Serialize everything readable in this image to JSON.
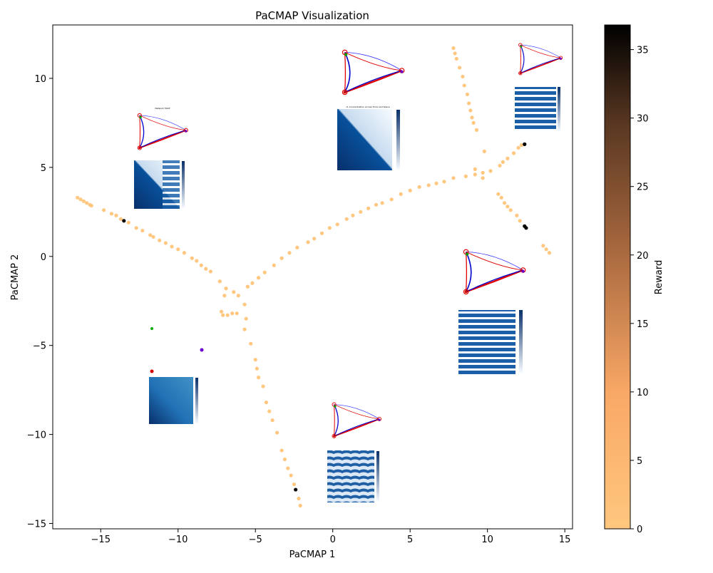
{
  "chart_data": {
    "type": "scatter",
    "title": "PaCMAP Visualization",
    "xlabel": "PaCMAP 1",
    "ylabel": "PaCMAP 2",
    "xlim": [
      -18.1,
      15.5
    ],
    "ylim": [
      -15.3,
      13.0
    ],
    "xticks": [
      -15,
      -10,
      -5,
      0,
      5,
      10,
      15
    ],
    "yticks": [
      -15,
      -10,
      -5,
      0,
      5,
      10
    ],
    "grid": false,
    "colorbar": {
      "label": "Reward",
      "min": 0,
      "max": 36.8,
      "ticks": [
        0,
        5,
        10,
        15,
        20,
        25,
        30,
        35
      ],
      "colormap": "copper_r",
      "color_low": "#ffc77f",
      "color_high": "#000000"
    },
    "series": [
      {
        "points": [
          [
            -16.5,
            3.3,
            0
          ],
          [
            -16.3,
            3.2,
            0
          ],
          [
            -16.1,
            3.1,
            0
          ],
          [
            -15.9,
            3.0,
            0
          ],
          [
            -15.7,
            2.9,
            0
          ],
          [
            -15.6,
            2.85,
            0
          ],
          [
            -14.8,
            2.6,
            0
          ],
          [
            -14.3,
            2.4,
            0
          ],
          [
            -14.0,
            2.3,
            0
          ],
          [
            -13.7,
            2.1,
            0
          ],
          [
            -13.5,
            2.0,
            36.5
          ],
          [
            -13.2,
            1.9,
            0
          ],
          [
            -12.7,
            1.6,
            0
          ],
          [
            -12.3,
            1.45,
            0
          ],
          [
            -11.8,
            1.2,
            0
          ],
          [
            -11.6,
            1.1,
            0
          ],
          [
            -11.2,
            0.9,
            0
          ],
          [
            -10.8,
            0.75,
            0
          ],
          [
            -10.4,
            0.55,
            0
          ],
          [
            -10.0,
            0.4,
            0
          ],
          [
            -9.6,
            0.2,
            0
          ],
          [
            -9.1,
            -0.1,
            0
          ],
          [
            -8.8,
            -0.25,
            0
          ],
          [
            -8.5,
            -0.5,
            0
          ],
          [
            -8.2,
            -0.7,
            0
          ],
          [
            -7.9,
            -0.85,
            0
          ],
          [
            -7.3,
            -1.4,
            0
          ],
          [
            -6.9,
            -1.8,
            0
          ],
          [
            -7.0,
            -2.2,
            0
          ],
          [
            -6.4,
            -2.0,
            0
          ],
          [
            -6.1,
            -2.2,
            0
          ],
          [
            -5.5,
            -1.7,
            0
          ],
          [
            -5.2,
            -1.5,
            0
          ],
          [
            -4.8,
            -1.2,
            0
          ],
          [
            -4.4,
            -0.9,
            0
          ],
          [
            -3.8,
            -0.5,
            0
          ],
          [
            -3.3,
            -0.1,
            0
          ],
          [
            -2.8,
            0.2,
            0
          ],
          [
            -2.3,
            0.5,
            0
          ],
          [
            -1.6,
            0.8,
            0
          ],
          [
            -1.2,
            1.0,
            0
          ],
          [
            -0.7,
            1.3,
            0
          ],
          [
            -0.2,
            1.6,
            0
          ],
          [
            0.3,
            1.8,
            0
          ],
          [
            0.9,
            2.1,
            0
          ],
          [
            1.3,
            2.3,
            0
          ],
          [
            1.8,
            2.5,
            0
          ],
          [
            2.3,
            2.7,
            0
          ],
          [
            2.8,
            2.9,
            0
          ],
          [
            3.2,
            3.0,
            0
          ],
          [
            3.8,
            3.2,
            0
          ],
          [
            4.4,
            3.5,
            0
          ],
          [
            5.0,
            3.7,
            0
          ],
          [
            5.6,
            3.9,
            0
          ],
          [
            6.2,
            4.0,
            0
          ],
          [
            6.7,
            4.1,
            0
          ],
          [
            7.2,
            4.2,
            0
          ],
          [
            7.8,
            4.4,
            0
          ],
          [
            8.6,
            4.5,
            0
          ],
          [
            9.2,
            4.6,
            0
          ],
          [
            9.7,
            4.7,
            0
          ],
          [
            10.2,
            4.8,
            0
          ],
          [
            10.8,
            5.1,
            0
          ],
          [
            11.3,
            5.5,
            0
          ],
          [
            11.7,
            5.8,
            0
          ],
          [
            12.0,
            6.1,
            0
          ],
          [
            12.2,
            6.25,
            0
          ],
          [
            12.4,
            6.3,
            36.5
          ],
          [
            9.8,
            5.9,
            0
          ],
          [
            11.0,
            5.3,
            0
          ],
          [
            9.7,
            4.4,
            0
          ],
          [
            9.2,
            4.9,
            0
          ],
          [
            7.8,
            11.7,
            0
          ],
          [
            7.9,
            11.4,
            0
          ],
          [
            8.0,
            11.1,
            0
          ],
          [
            8.2,
            10.6,
            0
          ],
          [
            8.4,
            10.1,
            0
          ],
          [
            8.5,
            9.6,
            0
          ],
          [
            8.7,
            9.1,
            0
          ],
          [
            8.8,
            8.6,
            0
          ],
          [
            8.9,
            8.2,
            0
          ],
          [
            9.0,
            7.8,
            0
          ],
          [
            9.1,
            7.5,
            0
          ],
          [
            9.3,
            7.1,
            0
          ],
          [
            10.7,
            3.5,
            0
          ],
          [
            10.9,
            3.3,
            0
          ],
          [
            11.1,
            3.0,
            0
          ],
          [
            11.3,
            2.8,
            0
          ],
          [
            11.5,
            2.6,
            0
          ],
          [
            11.9,
            2.3,
            0
          ],
          [
            12.1,
            2.0,
            0
          ],
          [
            12.4,
            1.7,
            36.5
          ],
          [
            12.5,
            1.6,
            36.5
          ],
          [
            13.6,
            0.6,
            0
          ],
          [
            13.8,
            0.4,
            0
          ],
          [
            14.0,
            0.2,
            0
          ],
          [
            -7.2,
            -3.1,
            0
          ],
          [
            -7.1,
            -3.3,
            0
          ],
          [
            -6.8,
            -3.3,
            0
          ],
          [
            -6.5,
            -3.2,
            0
          ],
          [
            -6.2,
            -3.2,
            0
          ],
          [
            -5.7,
            -2.7,
            0
          ],
          [
            -5.6,
            -3.5,
            0
          ],
          [
            -5.7,
            -4.1,
            0
          ],
          [
            -5.3,
            -4.9,
            0
          ],
          [
            -5.0,
            -5.8,
            0
          ],
          [
            -4.9,
            -6.3,
            0
          ],
          [
            -4.8,
            -6.8,
            0
          ],
          [
            -4.5,
            -7.3,
            0
          ],
          [
            -4.3,
            -8.2,
            0
          ],
          [
            -4.1,
            -8.7,
            0
          ],
          [
            -3.9,
            -9.2,
            0
          ],
          [
            -3.6,
            -9.9,
            0
          ],
          [
            -3.3,
            -10.9,
            0
          ],
          [
            -3.1,
            -11.4,
            0
          ],
          [
            -2.9,
            -11.9,
            0
          ],
          [
            -2.7,
            -12.3,
            0
          ],
          [
            -2.5,
            -12.8,
            0
          ],
          [
            -2.4,
            -13.1,
            36.5
          ],
          [
            -2.2,
            -13.6,
            0
          ],
          [
            -2.1,
            -14.0,
            0
          ]
        ]
      }
    ],
    "insets": [
      {
        "type": "network-and-heatmap",
        "heatmap_title": "Network Motif",
        "plot_title": "c1 Concentration Across Time and Space"
      },
      {
        "type": "network-and-heatmap",
        "heatmap_title": "",
        "plot_title": "c1 Concentration Across Time and Space"
      }
    ]
  }
}
